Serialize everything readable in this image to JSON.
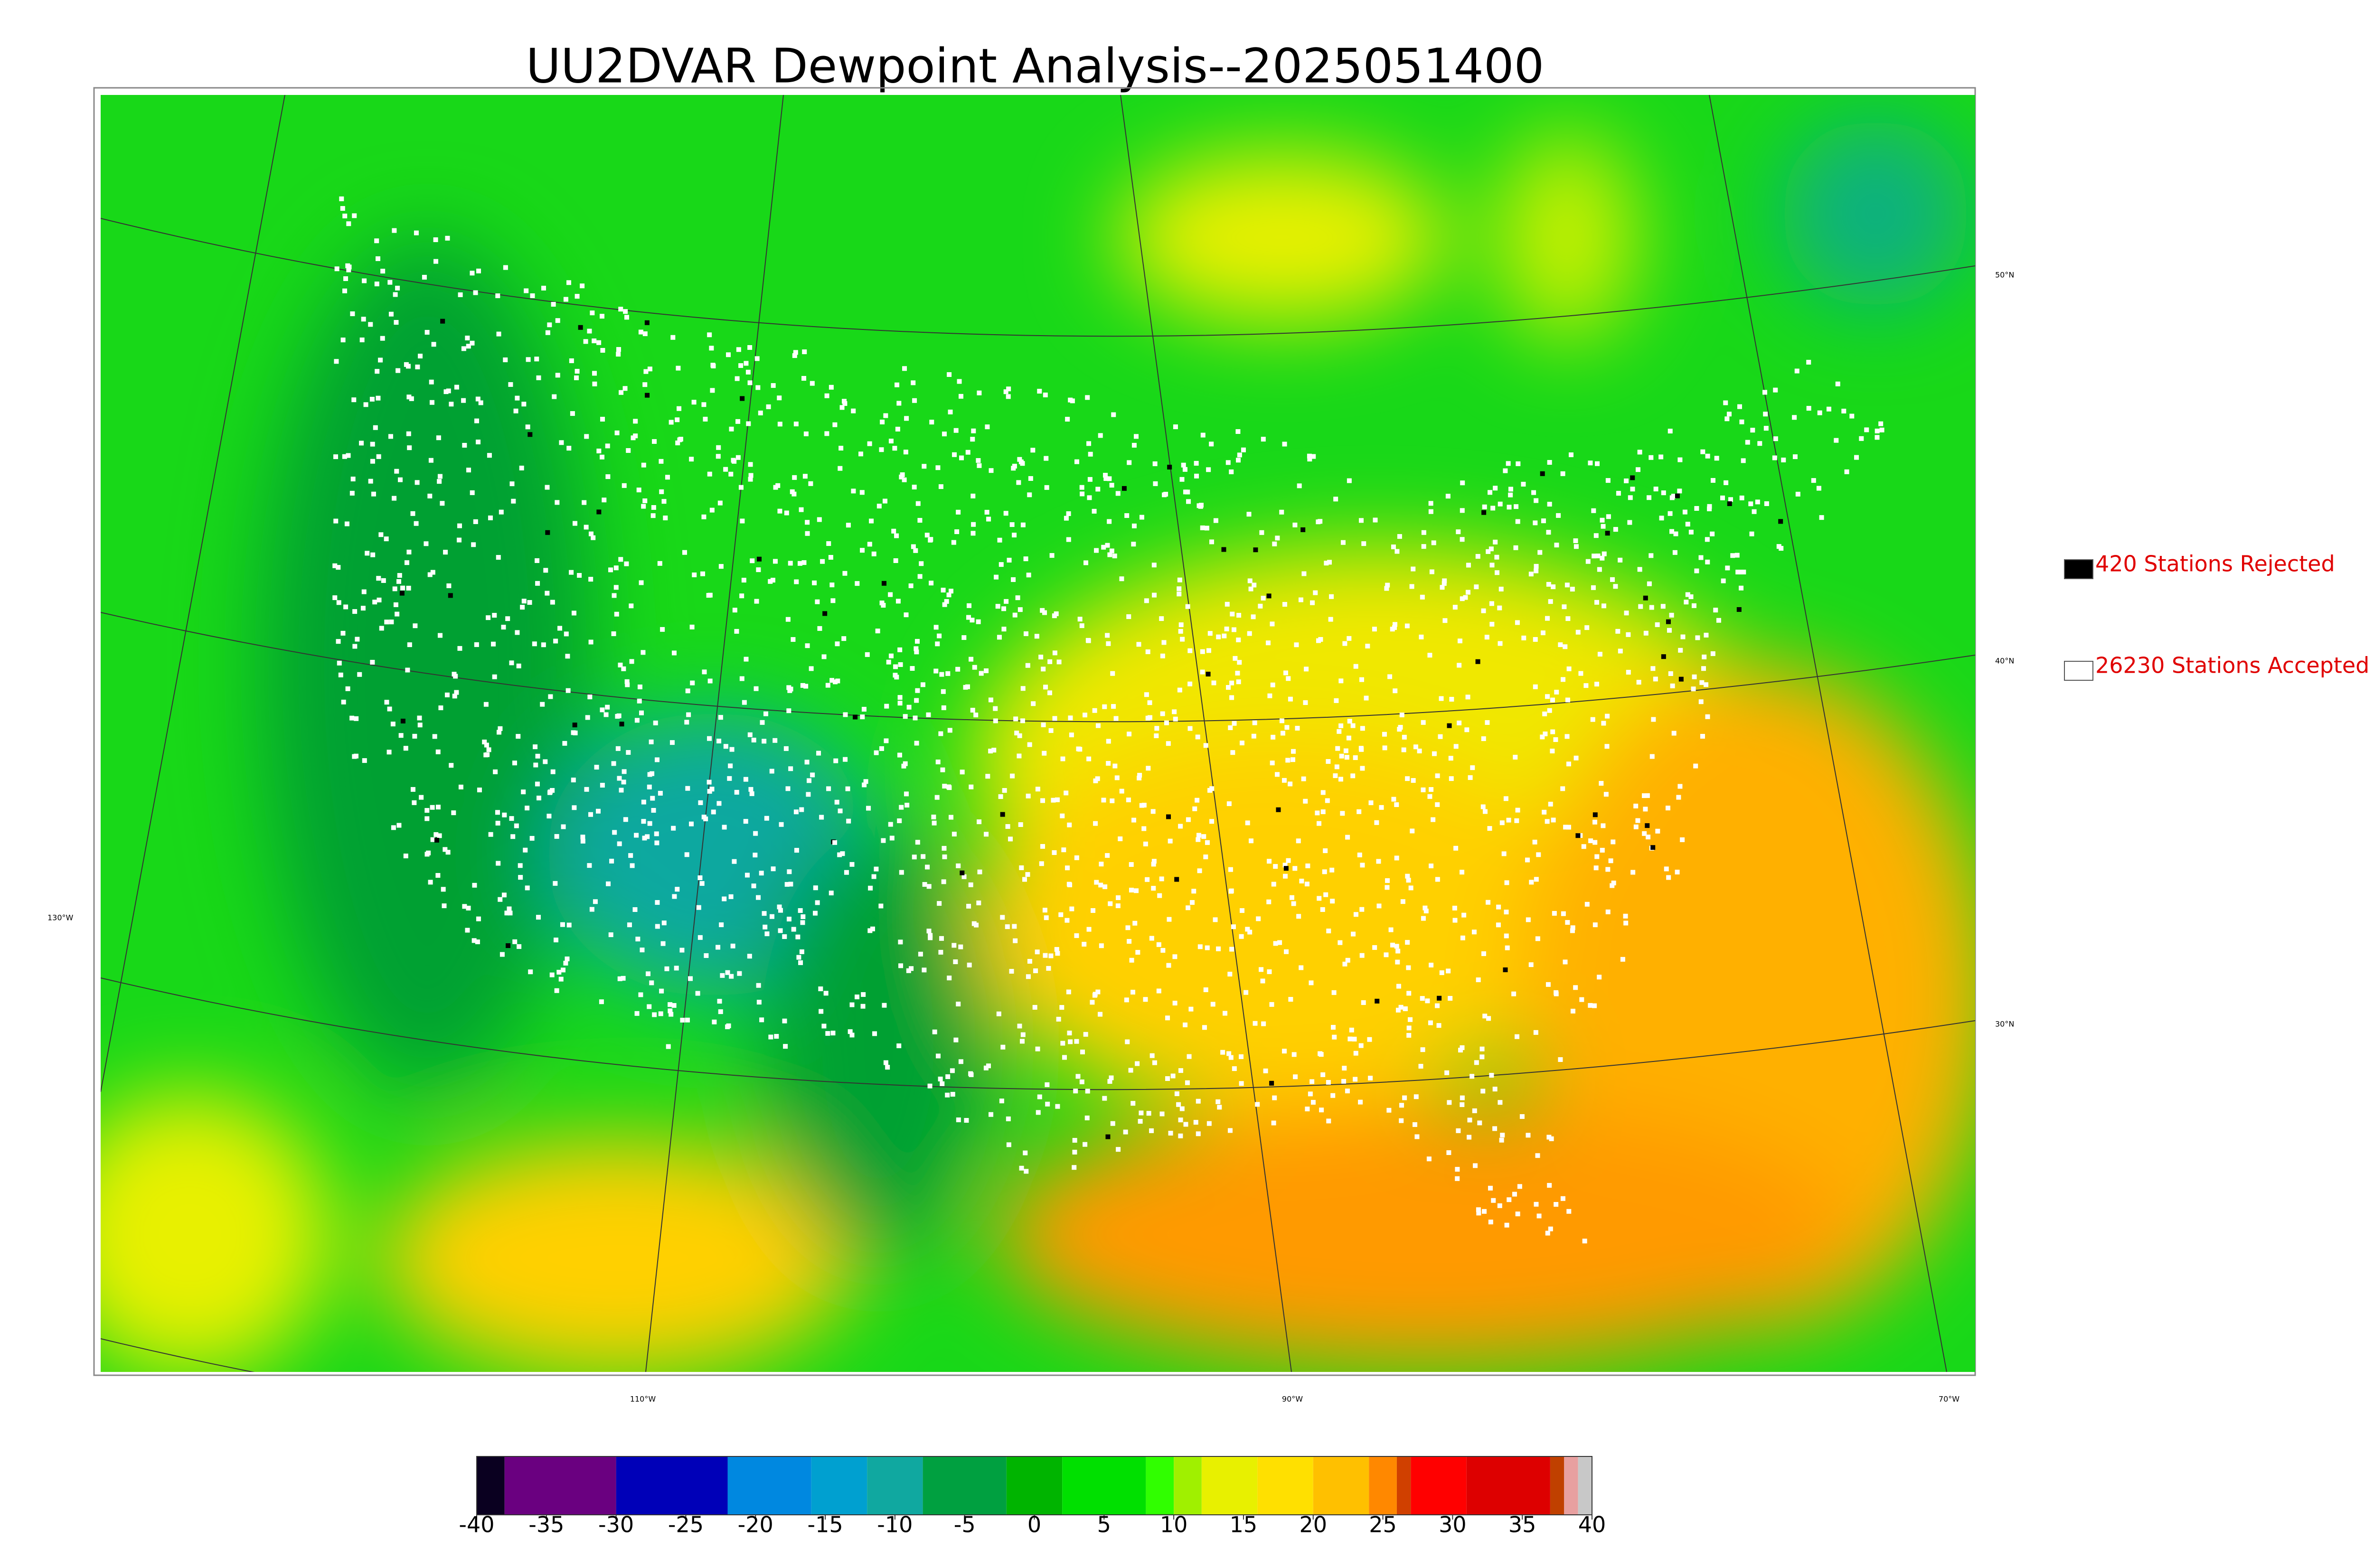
{
  "title": "UU2DVAR Dewpoint Analysis--2025051400",
  "legend": [
    {
      "label": "420 Stations Rejected",
      "color": "#000000"
    },
    {
      "label": "26230 Stations Accepted",
      "color": "#ffffff"
    }
  ],
  "map": {
    "lat_labels": [
      "50°N",
      "40°N",
      "30°N"
    ],
    "lon_labels": [
      "130°W",
      "110°W",
      "90°W",
      "70°W"
    ]
  },
  "colorbar": {
    "range": [
      -40,
      40
    ],
    "ticks": [
      -40,
      -35,
      -30,
      -25,
      -20,
      -15,
      -10,
      -5,
      0,
      5,
      10,
      15,
      20,
      25,
      30,
      35,
      40
    ],
    "segments": [
      {
        "from": -40,
        "to": -38,
        "color": "#0a0020"
      },
      {
        "from": -38,
        "to": -30,
        "color": "#6a0080"
      },
      {
        "from": -30,
        "to": -22,
        "color": "#0000b8"
      },
      {
        "from": -22,
        "to": -16,
        "color": "#0088e0"
      },
      {
        "from": -16,
        "to": -12,
        "color": "#00a0d0"
      },
      {
        "from": -12,
        "to": -8,
        "color": "#10a8a0"
      },
      {
        "from": -8,
        "to": -2,
        "color": "#00a040"
      },
      {
        "from": -2,
        "to": 2,
        "color": "#00b400"
      },
      {
        "from": 2,
        "to": 8,
        "color": "#00e000"
      },
      {
        "from": 8,
        "to": 10,
        "color": "#30ff00"
      },
      {
        "from": 10,
        "to": 12,
        "color": "#a0f000"
      },
      {
        "from": 12,
        "to": 16,
        "color": "#e8f000"
      },
      {
        "from": 16,
        "to": 20,
        "color": "#ffe000"
      },
      {
        "from": 20,
        "to": 24,
        "color": "#ffc000"
      },
      {
        "from": 24,
        "to": 26,
        "color": "#ff8800"
      },
      {
        "from": 26,
        "to": 27,
        "color": "#d04000"
      },
      {
        "from": 27,
        "to": 31,
        "color": "#ff0000"
      },
      {
        "from": 31,
        "to": 37,
        "color": "#dd0000"
      },
      {
        "from": 37,
        "to": 38,
        "color": "#c04000"
      },
      {
        "from": 38,
        "to": 39,
        "color": "#e8a0a0"
      },
      {
        "from": 39,
        "to": 40,
        "color": "#c8c8c8"
      }
    ]
  }
}
